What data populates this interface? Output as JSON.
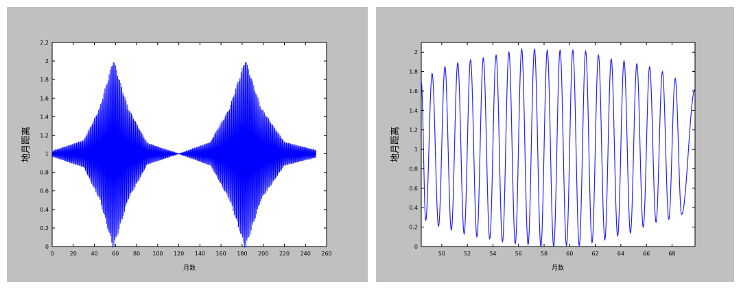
{
  "chart_data": [
    {
      "type": "line",
      "title": "",
      "xlabel": "月数",
      "ylabel": "地月距离",
      "xlim": [
        0,
        260
      ],
      "ylim": [
        0,
        2.2
      ],
      "xticks": [
        "0",
        "20",
        "40",
        "60",
        "80",
        "100",
        "120",
        "140",
        "160",
        "180",
        "200",
        "220",
        "240",
        "260"
      ],
      "yticks": [
        "0",
        "0.2",
        "0.4",
        "0.6",
        "0.8",
        "1",
        "1.2",
        "1.4",
        "1.6",
        "1.8",
        "2",
        "2.2"
      ],
      "grid": false,
      "series": [
        {
          "color": "#0000ff",
          "x_range": [
            0,
            250
          ],
          "oscillation_period": 1,
          "center": 1.0,
          "envelope_peaks_x": [
            58,
            183
          ],
          "envelope_max_y": 2.03,
          "envelope_min_y": 0.0,
          "envelope_at_x": [
            [
              0,
              0.03
            ],
            [
              30,
              0.15
            ],
            [
              45,
              0.5
            ],
            [
              58,
              1.03
            ],
            [
              72,
              0.5
            ],
            [
              90,
              0.12
            ],
            [
              120,
              0.0
            ],
            [
              150,
              0.13
            ],
            [
              168,
              0.5
            ],
            [
              183,
              1.03
            ],
            [
              198,
              0.5
            ],
            [
              220,
              0.13
            ],
            [
              250,
              0.04
            ]
          ]
        }
      ]
    },
    {
      "type": "line",
      "title": "",
      "xlabel": "月数",
      "ylabel": "地月距离",
      "xlim": [
        48.4,
        69.8
      ],
      "ylim": [
        0,
        2.1
      ],
      "xticks": [
        "50",
        "52",
        "54",
        "56",
        "58",
        "60",
        "62",
        "64",
        "66",
        "68"
      ],
      "yticks": [
        "0",
        "0.2",
        "0.4",
        "0.6",
        "0.8",
        "1",
        "1.2",
        "1.4",
        "1.6",
        "1.8",
        "2"
      ],
      "grid": false,
      "series": [
        {
          "color": "#2222ff",
          "oscillation_period": 1,
          "peaks": [
            [
              49.25,
              1.78
            ],
            [
              50.25,
              1.85
            ],
            [
              51.25,
              1.89
            ],
            [
              52.25,
              1.92
            ],
            [
              53.25,
              1.94
            ],
            [
              54.25,
              1.97
            ],
            [
              55.25,
              2.0
            ],
            [
              56.25,
              2.03
            ],
            [
              57.25,
              2.03
            ],
            [
              58.25,
              2.02
            ],
            [
              59.25,
              2.02
            ],
            [
              60.25,
              2.02
            ],
            [
              61.25,
              2.01
            ],
            [
              62.25,
              1.97
            ],
            [
              63.25,
              1.93
            ],
            [
              64.25,
              1.91
            ],
            [
              65.25,
              1.88
            ],
            [
              66.25,
              1.85
            ],
            [
              67.25,
              1.8
            ],
            [
              68.25,
              1.73
            ]
          ],
          "troughs": [
            [
              48.75,
              0.27
            ],
            [
              49.75,
              0.21
            ],
            [
              50.75,
              0.17
            ],
            [
              51.75,
              0.13
            ],
            [
              52.75,
              0.1
            ],
            [
              53.75,
              0.08
            ],
            [
              54.75,
              0.05
            ],
            [
              55.75,
              0.03
            ],
            [
              56.75,
              0.02
            ],
            [
              57.75,
              0.0
            ],
            [
              58.75,
              0.0
            ],
            [
              59.75,
              0.01
            ],
            [
              60.75,
              0.01
            ],
            [
              61.75,
              0.04
            ],
            [
              62.75,
              0.07
            ],
            [
              63.75,
              0.11
            ],
            [
              64.75,
              0.14
            ],
            [
              65.75,
              0.2
            ],
            [
              66.75,
              0.25
            ],
            [
              67.75,
              0.28
            ],
            [
              68.75,
              0.33
            ]
          ],
          "start": [
            48.4,
            1.7
          ],
          "end": [
            69.8,
            1.62
          ]
        }
      ]
    }
  ]
}
